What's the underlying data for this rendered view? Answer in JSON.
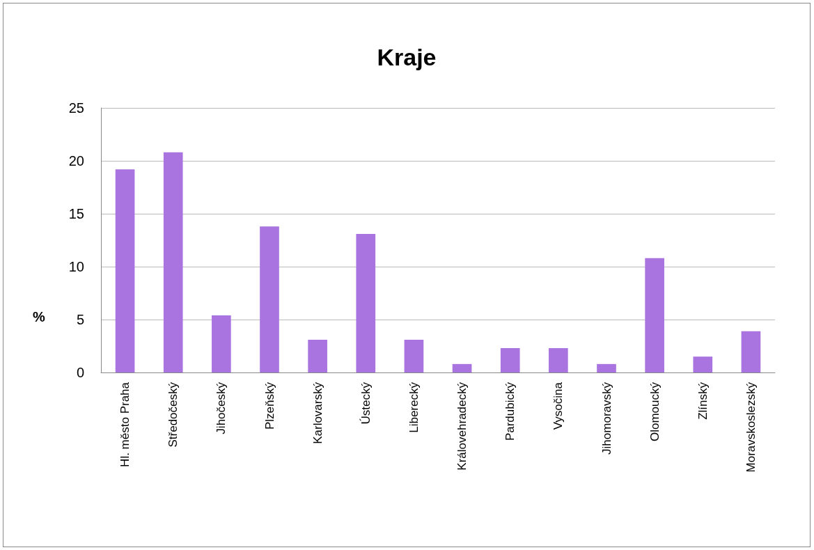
{
  "chart_data": {
    "type": "bar",
    "title": "Kraje",
    "ylabel": "%",
    "categories": [
      "Hl. město Praha",
      "Středočeský",
      "Jihočeský",
      "Plzeňský",
      "Karlovarský",
      "Ústecký",
      "Liberecký",
      "Královehradecký",
      "Pardubický",
      "Vysočina",
      "Jihomoravský",
      "Olomoucký",
      "Zlínský",
      "Moravskoslezský"
    ],
    "values": [
      19.2,
      20.8,
      5.4,
      13.8,
      3.1,
      13.1,
      3.1,
      0.8,
      2.3,
      2.3,
      0.8,
      10.8,
      1.5,
      3.9
    ],
    "color": "#a974e0",
    "ylim": [
      0,
      25
    ],
    "yticks": [
      0,
      5,
      10,
      15,
      20,
      25
    ],
    "grid": "y"
  }
}
